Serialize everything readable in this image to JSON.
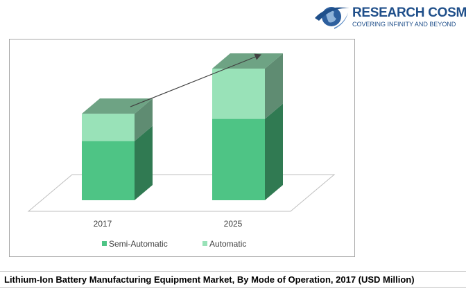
{
  "brand": {
    "name": "RESEARCH COSMOS",
    "tagline": "COVERING INFINITY AND BEYOND",
    "icon": "globe-swoosh-icon"
  },
  "caption": "Lithium-Ion Battery Manufacturing Equipment Market, By Mode of Operation, 2017 (USD Million)",
  "chart_data": {
    "type": "bar",
    "stacked": true,
    "three_d": true,
    "categories": [
      "2017",
      "2025"
    ],
    "series": [
      {
        "name": "Semi-Automatic",
        "values": [
          80,
          110
        ],
        "color": "#4ec485"
      },
      {
        "name": "Automatic",
        "values": [
          37,
          68
        ],
        "color": "#99e2b8"
      }
    ],
    "ylim": [
      0,
      178
    ],
    "title": "",
    "xlabel": "",
    "ylabel": "",
    "legend_position": "bottom",
    "grid": false,
    "trend_arrow": {
      "from": "2017",
      "to": "2025"
    }
  }
}
